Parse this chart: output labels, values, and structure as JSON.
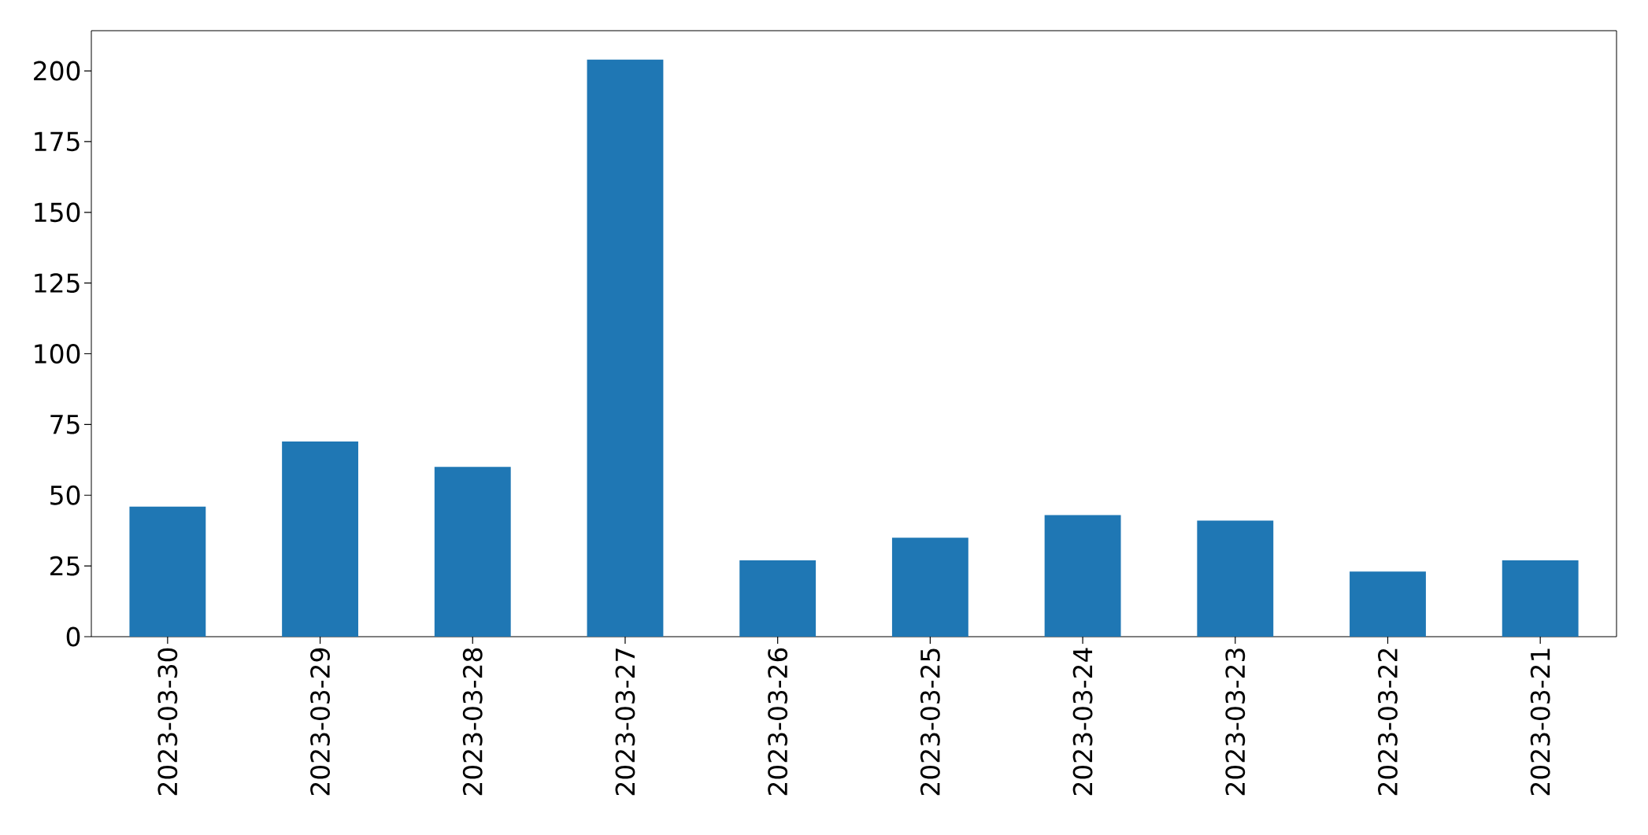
{
  "chart_data": {
    "type": "bar",
    "categories": [
      "2023-03-30",
      "2023-03-29",
      "2023-03-28",
      "2023-03-27",
      "2023-03-26",
      "2023-03-25",
      "2023-03-24",
      "2023-03-23",
      "2023-03-22",
      "2023-03-21"
    ],
    "values": [
      46,
      69,
      60,
      204,
      27,
      35,
      43,
      41,
      23,
      27
    ],
    "color": "#1f77b4",
    "ylim": [
      0,
      214.2
    ],
    "yticks": [
      0,
      25,
      50,
      75,
      100,
      125,
      150,
      175,
      200
    ]
  }
}
